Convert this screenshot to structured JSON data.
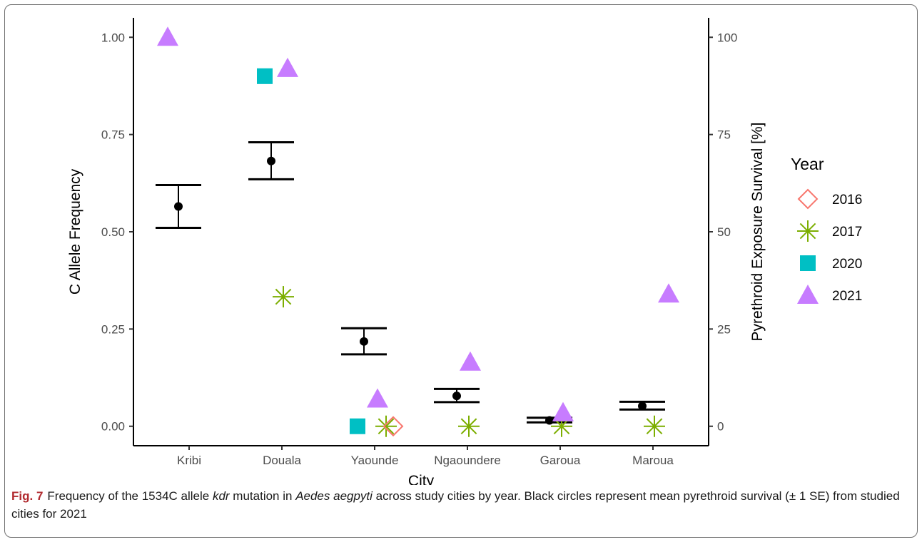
{
  "chart_data": {
    "type": "scatter",
    "categories": [
      "Kribi",
      "Douala",
      "Yaounde",
      "Ngaoundere",
      "Garoua",
      "Maroua"
    ],
    "xlabel": "City",
    "ylabel": "C Allele Frequency",
    "ylabel_right": "Pyrethroid Exposure Survival [%]",
    "ylim": [
      -0.05,
      1.05
    ],
    "yticks": [
      "0.00",
      "0.25",
      "0.50",
      "0.75",
      "1.00"
    ],
    "yticks_right": [
      "0",
      "25",
      "50",
      "75",
      "100"
    ],
    "legend": {
      "title": "Year",
      "position": "right"
    },
    "series": [
      {
        "name": "2016",
        "marker": "diamond-open",
        "color": "#F8766D",
        "points": [
          {
            "city": "Yaounde",
            "value": 0.0
          }
        ]
      },
      {
        "name": "2017",
        "marker": "asterisk",
        "color": "#7CAE00",
        "points": [
          {
            "city": "Douala",
            "value": 0.333
          },
          {
            "city": "Yaounde",
            "value": 0.0
          },
          {
            "city": "Ngaoundere",
            "value": 0.0
          },
          {
            "city": "Garoua",
            "value": 0.0
          },
          {
            "city": "Maroua",
            "value": 0.0
          }
        ]
      },
      {
        "name": "2020",
        "marker": "square",
        "color": "#00BFC4",
        "points": [
          {
            "city": "Douala",
            "value": 0.9
          },
          {
            "city": "Yaounde",
            "value": 0.0
          }
        ]
      },
      {
        "name": "2021",
        "marker": "triangle",
        "color": "#C77CFF",
        "points": [
          {
            "city": "Kribi",
            "value": 1.0
          },
          {
            "city": "Douala",
            "value": 0.92
          },
          {
            "city": "Yaounde",
            "value": 0.07
          },
          {
            "city": "Ngaoundere",
            "value": 0.165
          },
          {
            "city": "Garoua",
            "value": 0.035
          },
          {
            "city": "Maroua",
            "value": 0.34
          }
        ]
      }
    ],
    "survival": {
      "axis": "right",
      "color": "#000000",
      "points": [
        {
          "city": "Kribi",
          "mean": 56.5,
          "low": 51,
          "high": 62
        },
        {
          "city": "Douala",
          "mean": 68.2,
          "low": 63.5,
          "high": 73
        },
        {
          "city": "Yaounde",
          "mean": 21.8,
          "low": 18.5,
          "high": 25.2
        },
        {
          "city": "Ngaoundere",
          "mean": 7.8,
          "low": 6.2,
          "high": 9.6
        },
        {
          "city": "Garoua",
          "mean": 1.5,
          "low": 1.0,
          "high": 2.2
        },
        {
          "city": "Maroua",
          "mean": 5.2,
          "low": 4.3,
          "high": 6.3
        }
      ]
    }
  },
  "caption": {
    "label": "Fig. 7",
    "text_a": "Frequency of the 1534C allele ",
    "kdr": "kdr",
    "text_b": " mutation in ",
    "species": "Aedes aegpyti",
    "text_c": " across study cities by year. Black circles represent mean pyrethroid survival (± 1 SE) from studied cities for 2021"
  }
}
